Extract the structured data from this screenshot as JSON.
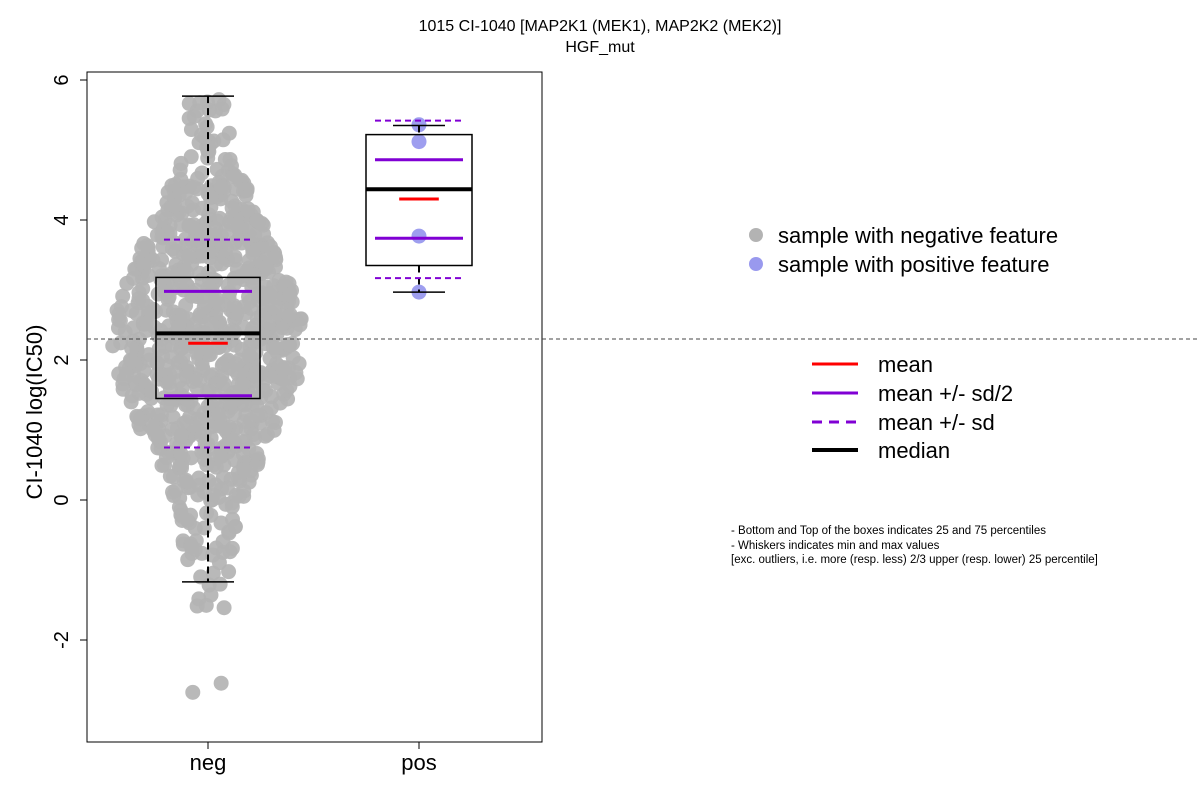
{
  "chart_data": {
    "type": "box",
    "title": "1015 CI-1040 [MAP2K1 (MEK1), MAP2K2 (MEK2)]",
    "subtitle": "HGF_mut",
    "ylabel": "CI-1040 log(IC50)",
    "categories": [
      "neg",
      "pos"
    ],
    "ylim": [
      -3.5,
      6.1
    ],
    "yticks": [
      -2,
      0,
      2,
      4,
      6
    ],
    "reference_line_y": 2.3,
    "groups": [
      {
        "name": "neg",
        "color": "#b3b3b3",
        "q1": 1.45,
        "median": 2.38,
        "q3": 3.18,
        "whisker_low": -1.17,
        "whisker_high": 5.77,
        "mean": 2.24,
        "mean_minus_half_sd": 1.49,
        "mean_plus_half_sd": 2.98,
        "mean_minus_sd": 0.75,
        "mean_plus_sd": 3.72,
        "n_points_approx": 900
      },
      {
        "name": "pos",
        "color": "#9999ee",
        "q1": 3.35,
        "median": 4.44,
        "q3": 5.22,
        "whisker_low": 2.97,
        "whisker_high": 5.35,
        "mean": 4.3,
        "mean_minus_half_sd": 3.74,
        "mean_plus_half_sd": 4.86,
        "mean_minus_sd": 3.17,
        "mean_plus_sd": 5.42,
        "points": [
          5.36,
          5.12,
          3.77,
          2.97
        ]
      }
    ],
    "legend_points": [
      {
        "label": "sample with negative feature",
        "color": "#b3b3b3"
      },
      {
        "label": "sample with positive feature",
        "color": "#9999ee"
      }
    ],
    "legend_lines": [
      {
        "label": "mean",
        "color": "#ff0000",
        "style": "solid"
      },
      {
        "label": "mean +/- sd/2",
        "color": "#8000d4",
        "style": "solid"
      },
      {
        "label": "mean +/- sd",
        "color": "#8000d4",
        "style": "dashed"
      },
      {
        "label": "median",
        "color": "#000000",
        "style": "solid-thick"
      }
    ],
    "notes": [
      "- Bottom and Top of the boxes indicates 25 and 75 percentiles",
      "- Whiskers indicates min and max values",
      "[exc. outliers, i.e. more (resp. less) 2/3 upper (resp. lower) 25 percentile]"
    ]
  }
}
